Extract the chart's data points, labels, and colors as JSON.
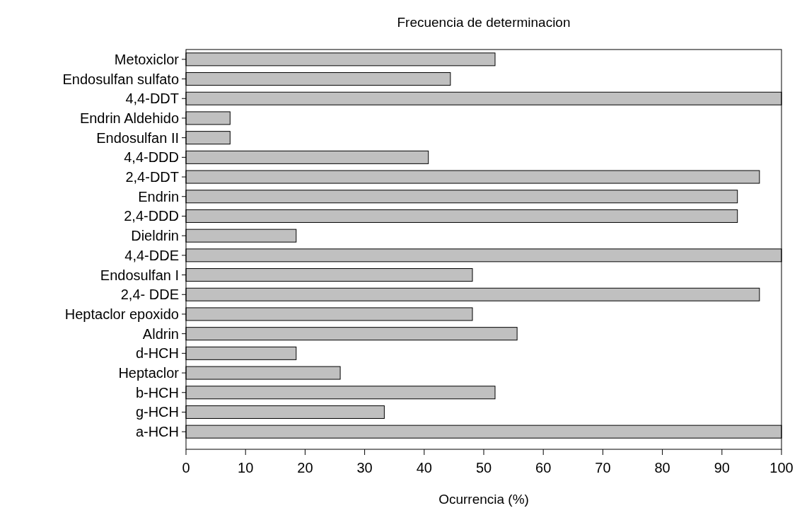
{
  "chart_data": {
    "type": "bar",
    "orientation": "horizontal",
    "title": "Frecuencia de determinacion",
    "xlabel": "Ocurrencia (%)",
    "categories": [
      "Metoxiclor",
      "Endosulfan sulfato",
      "4,4-DDT",
      "Endrin Aldehido",
      "Endosulfan II",
      "4,4-DDD",
      "2,4-DDT",
      "Endrin ",
      "2,4-DDD",
      "Dieldrin",
      "4,4-DDE",
      "Endosulfan I",
      "2,4- DDE",
      "Heptaclor epoxido",
      "Aldrin",
      "d-HCH",
      "Heptaclor",
      "b-HCH",
      "g-HCH",
      "a-HCH"
    ],
    "values": [
      51.9,
      44.4,
      100,
      7.4,
      7.4,
      40.7,
      96.3,
      92.6,
      92.6,
      18.5,
      100,
      48.1,
      96.3,
      48.1,
      55.6,
      18.5,
      25.9,
      51.9,
      33.3,
      100
    ],
    "color": "#c0c0c0",
    "xlim": [
      0,
      100
    ],
    "xticks": [
      0,
      10,
      20,
      30,
      40,
      50,
      60,
      70,
      80,
      90,
      100
    ]
  }
}
